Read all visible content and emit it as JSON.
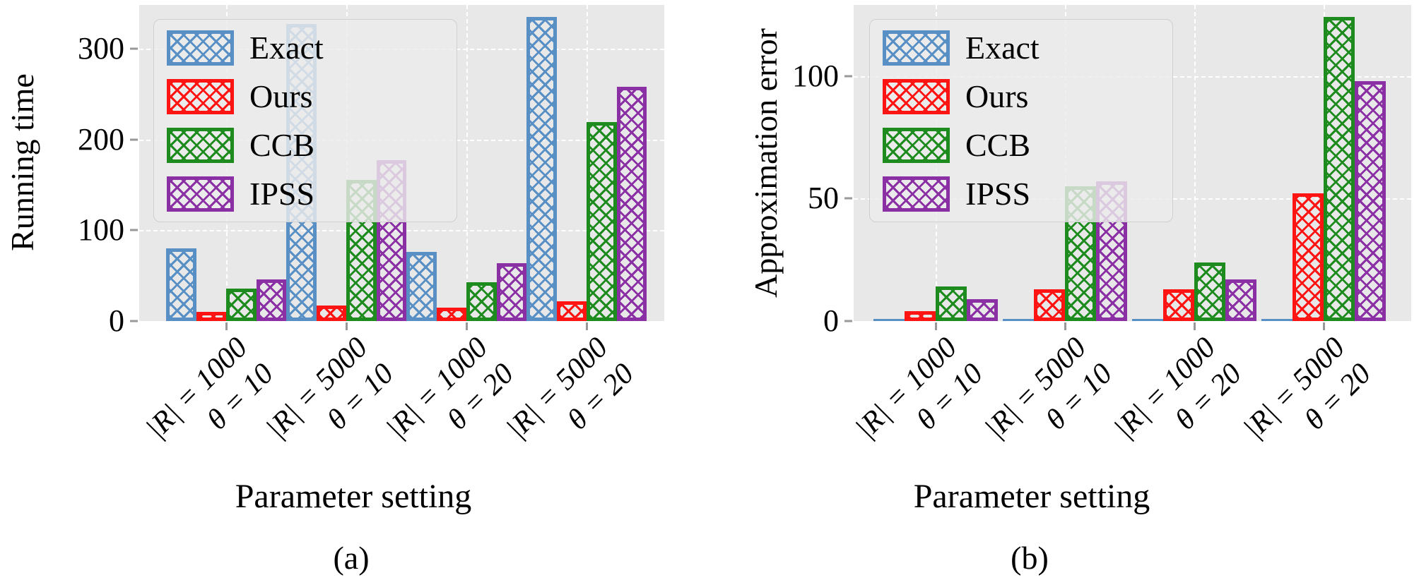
{
  "colors": {
    "plot_background": "#e8e8e8",
    "grid": "#ffffff",
    "tick": "#999999",
    "exact_blue": "#5890c5",
    "ours_red": "#ff1414",
    "ccb_green": "#1e8b1e",
    "ipss_purple": "#8b2fa5"
  },
  "chart_data": [
    {
      "type": "bar",
      "panel": "a",
      "ylabel": "Running time",
      "xlabel": "Parameter setting",
      "caption": "(a)",
      "legend_position": "upper left",
      "grid": true,
      "categories": [
        [
          "|R| = 1000",
          "θ = 10"
        ],
        [
          "|R| = 5000",
          "θ = 10"
        ],
        [
          "|R| = 1000",
          "θ = 20"
        ],
        [
          "|R| = 5000",
          "θ = 20"
        ]
      ],
      "yticks": [
        0,
        100,
        200,
        300
      ],
      "ylim": [
        0,
        348
      ],
      "series": [
        {
          "name": "Exact",
          "color": "#5890c5",
          "values": [
            80,
            327,
            76,
            335
          ]
        },
        {
          "name": "Ours",
          "color": "#ff1414",
          "values": [
            10,
            17,
            15,
            22
          ]
        },
        {
          "name": "CCB",
          "color": "#1e8b1e",
          "values": [
            36,
            155,
            43,
            219
          ]
        },
        {
          "name": "IPSS",
          "color": "#8b2fa5",
          "values": [
            46,
            177,
            64,
            258
          ]
        }
      ]
    },
    {
      "type": "bar",
      "panel": "b",
      "ylabel": "Approximation error",
      "xlabel": "Parameter setting",
      "caption": "(b)",
      "legend_position": "upper left",
      "grid": true,
      "categories": [
        [
          "|R| = 1000",
          "θ = 10"
        ],
        [
          "|R| = 5000",
          "θ = 10"
        ],
        [
          "|R| = 1000",
          "θ = 20"
        ],
        [
          "|R| = 5000",
          "θ = 20"
        ]
      ],
      "yticks": [
        0,
        50,
        100
      ],
      "ylim": [
        0,
        129
      ],
      "series": [
        {
          "name": "Exact",
          "color": "#5890c5",
          "values": [
            0.5,
            0.5,
            0.5,
            0.5
          ]
        },
        {
          "name": "Ours",
          "color": "#ff1414",
          "values": [
            4,
            13,
            13,
            52
          ]
        },
        {
          "name": "CCB",
          "color": "#1e8b1e",
          "values": [
            14,
            55,
            24,
            124
          ]
        },
        {
          "name": "IPSS",
          "color": "#8b2fa5",
          "values": [
            9,
            57,
            17,
            98
          ]
        }
      ]
    }
  ]
}
